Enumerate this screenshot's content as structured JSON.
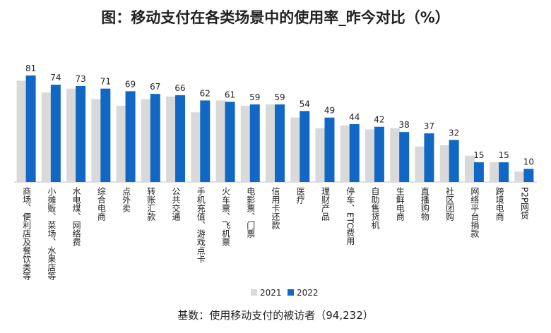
{
  "chart_data": {
    "type": "bar",
    "title": "图：移动支付在各类场景中的使用率_昨今对比（%）",
    "footnote": "基数：使用移动支付的被访者（94,232）",
    "categories": [
      "商场、便利店及餐饮类等",
      "小摊贩、菜场、水果店等",
      "水电煤、网络费",
      "综合电商",
      "点外卖",
      "转账汇款",
      "公共交通",
      "手机充值、游戏点卡",
      "火车票、飞机票",
      "电影票、门票",
      "信用卡还款",
      "医疗",
      "理财产品",
      "停车、ETC费用",
      "自助售货机",
      "生鲜电商",
      "直播购物",
      "社区团购",
      "网络平台捐款",
      "跨境电商",
      "P2P网贷"
    ],
    "series": [
      {
        "name": "2021",
        "color": "#d9d9d9",
        "values": [
          77,
          68,
          71,
          63,
          58,
          63,
          65,
          53,
          62,
          58,
          59,
          49,
          41,
          43,
          40,
          41,
          27,
          28,
          20,
          15,
          8
        ]
      },
      {
        "name": "2022",
        "color": "#1168c4",
        "values": [
          81,
          74,
          73,
          71,
          69,
          67,
          66,
          62,
          61,
          59,
          59,
          54,
          49,
          44,
          42,
          38,
          37,
          32,
          15,
          15,
          10
        ]
      }
    ],
    "legend": "bottom"
  }
}
